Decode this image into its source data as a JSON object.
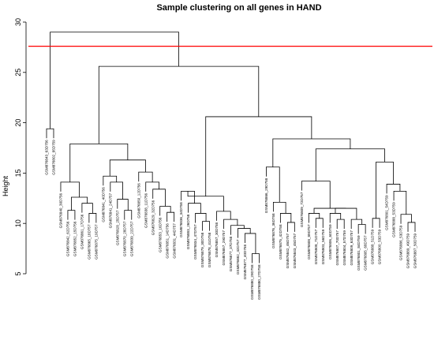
{
  "chart_data": {
    "type": "dendrogram",
    "title": "Sample clustering on all genes in HAND",
    "ylabel": "Height",
    "ylim": [
      5,
      30
    ],
    "yticks": [
      5,
      10,
      15,
      20,
      25,
      30
    ],
    "cut_line": {
      "height": 27.6,
      "color": "#ff0000"
    },
    "leaves": [
      {
        "label": "GSM876843_63D756"
      },
      {
        "label": "GSM876802_85D759"
      },
      {
        "label": "GSM876840_30D756"
      },
      {
        "label": "GSM876842_62D756"
      },
      {
        "label": "GSM876852_15D756"
      },
      {
        "label": "GSM876861_17D756"
      },
      {
        "label": "GSM876865_18D757"
      },
      {
        "label": "GSM876875_19D757"
      },
      {
        "label": "GSM876841_40D756"
      },
      {
        "label": "GSM876841_24D757"
      },
      {
        "label": "GSM876828_25D757"
      },
      {
        "label": "GSM876870_28D757"
      },
      {
        "label": "GSM876839_22D757"
      },
      {
        "label": "GSM876850_12D756"
      },
      {
        "label": "GSM876838_11D756"
      },
      {
        "label": "GSM876829_32D756"
      },
      {
        "label": "GSM876853_16D756"
      },
      {
        "label": "GSM876851_14D756"
      },
      {
        "label": "GSM876831_44D757"
      },
      {
        "label": "GSM876836_34D758"
      },
      {
        "label": "GSM876883_26D758"
      },
      {
        "label": "GSM876834_47D757"
      },
      {
        "label": "GSM876879_30D758"
      },
      {
        "label": "GSM876878_41D758"
      },
      {
        "label": "GSM876857_30D758"
      },
      {
        "label": "GSM876857_29D757"
      },
      {
        "label": "GSM876877_37D758"
      },
      {
        "label": "GSM876882_42D757"
      },
      {
        "label": "GSM876877_40D758"
      },
      {
        "label": "GSM876880_29D758"
      },
      {
        "label": "GSM876880_27D758"
      },
      {
        "label": "GSM876866_29D758"
      },
      {
        "label": "GSM876876_36D758"
      },
      {
        "label": "GSM876875_42D758"
      },
      {
        "label": "GSM876842_46D757"
      },
      {
        "label": "GSM876843_45D757"
      },
      {
        "label": "GSM876809_72D757"
      },
      {
        "label": "GSM876808_89D757"
      },
      {
        "label": "GSM876808_71D757"
      },
      {
        "label": "GSM876803_56D759"
      },
      {
        "label": "GSM876806_60D759"
      },
      {
        "label": "GSM876807_70D757"
      },
      {
        "label": "GSM876804_57D759"
      },
      {
        "label": "GSM876809_63D757"
      },
      {
        "label": "GSM876801_84D759"
      },
      {
        "label": "GSM876805_68D757"
      },
      {
        "label": "GSM876888_51D759"
      },
      {
        "label": "GSM876800_53D759"
      },
      {
        "label": "GSM876801_54D759"
      },
      {
        "label": "GSM876888_53D759"
      },
      {
        "label": "GSM876886_53D759"
      },
      {
        "label": "GSM876889_49D759"
      },
      {
        "label": "GSM876887_50D759"
      }
    ],
    "merges": [
      {
        "a": "L0",
        "b": "L1",
        "h": 19.4
      },
      {
        "a": "L3",
        "b": "L4",
        "h": 11.3
      },
      {
        "a": "L6",
        "b": "L7",
        "h": 11.0
      },
      {
        "a": "L5",
        "b": "M2",
        "h": 12.0
      },
      {
        "a": "M1",
        "b": "M3",
        "h": 12.6
      },
      {
        "a": "L2",
        "b": "M4",
        "h": 14.1
      },
      {
        "a": "L11",
        "b": "L12",
        "h": 11.3
      },
      {
        "a": "L10",
        "b": "M6",
        "h": 12.4
      },
      {
        "a": "L9",
        "b": "M7",
        "h": 14.1
      },
      {
        "a": "L8",
        "b": "M8",
        "h": 14.7
      },
      {
        "a": "L17",
        "b": "L18",
        "h": 11.1
      },
      {
        "a": "L16",
        "b": "M10",
        "h": 11.7
      },
      {
        "a": "L15",
        "b": "M11",
        "h": 13.4
      },
      {
        "a": "L14",
        "b": "M12",
        "h": 14.1
      },
      {
        "a": "L13",
        "b": "M13",
        "h": 15.1
      },
      {
        "a": "M9",
        "b": "M14",
        "h": 16.3
      },
      {
        "a": "M5",
        "b": "M15",
        "h": 17.9
      },
      {
        "a": "L22",
        "b": "L23",
        "h": 10.2
      },
      {
        "a": "L21",
        "b": "M17",
        "h": 11.0
      },
      {
        "a": "L20",
        "b": "M18",
        "h": 12.0
      },
      {
        "a": "L19",
        "b": "M19",
        "h": 13.2
      },
      {
        "a": "L29",
        "b": "L30",
        "h": 7.0
      },
      {
        "a": "L28",
        "b": "M21",
        "h": 9.0
      },
      {
        "a": "L27",
        "b": "M22",
        "h": 9.5
      },
      {
        "a": "L26",
        "b": "M23",
        "h": 9.8
      },
      {
        "a": "L25",
        "b": "M24",
        "h": 10.4
      },
      {
        "a": "L24",
        "b": "M25",
        "h": 11.2
      },
      {
        "a": "M20",
        "b": "M26",
        "h": 12.7
      },
      {
        "a": "L34",
        "b": "L35",
        "h": 10.1
      },
      {
        "a": "L33",
        "b": "M28",
        "h": 11.0
      },
      {
        "a": "L32",
        "b": "M29",
        "h": 12.1
      },
      {
        "a": "L31",
        "b": "M30",
        "h": 15.6
      },
      {
        "a": "L44",
        "b": "L45",
        "h": 9.9
      },
      {
        "a": "L43",
        "b": "M32",
        "h": 10.4
      },
      {
        "a": "L41",
        "b": "L42",
        "h": 10.4
      },
      {
        "a": "L40",
        "b": "M34",
        "h": 11.0
      },
      {
        "a": "M33",
        "b": "M35",
        "h": 11.5
      },
      {
        "a": "L38",
        "b": "L39",
        "h": 10.5
      },
      {
        "a": "L37",
        "b": "M37",
        "h": 11.0
      },
      {
        "a": "M36",
        "b": "M38",
        "h": 11.5
      },
      {
        "a": "L36",
        "b": "M39",
        "h": 14.2
      },
      {
        "a": "L51",
        "b": "L52",
        "h": 10.1
      },
      {
        "a": "L50",
        "b": "M41",
        "h": 10.9
      },
      {
        "a": "L49",
        "b": "M42",
        "h": 13.2
      },
      {
        "a": "L48",
        "b": "M43",
        "h": 13.9
      },
      {
        "a": "L46",
        "b": "L47",
        "h": 10.5
      },
      {
        "a": "M45",
        "b": "M44",
        "h": 16.1
      },
      {
        "a": "M40",
        "b": "M46",
        "h": 17.4
      },
      {
        "a": "M31",
        "b": "M47",
        "h": 18.4
      },
      {
        "a": "M27",
        "b": "M48",
        "h": 20.6
      },
      {
        "a": "M16",
        "b": "M49",
        "h": 25.6
      },
      {
        "a": "M0",
        "b": "M50",
        "h": 29.0
      }
    ]
  }
}
